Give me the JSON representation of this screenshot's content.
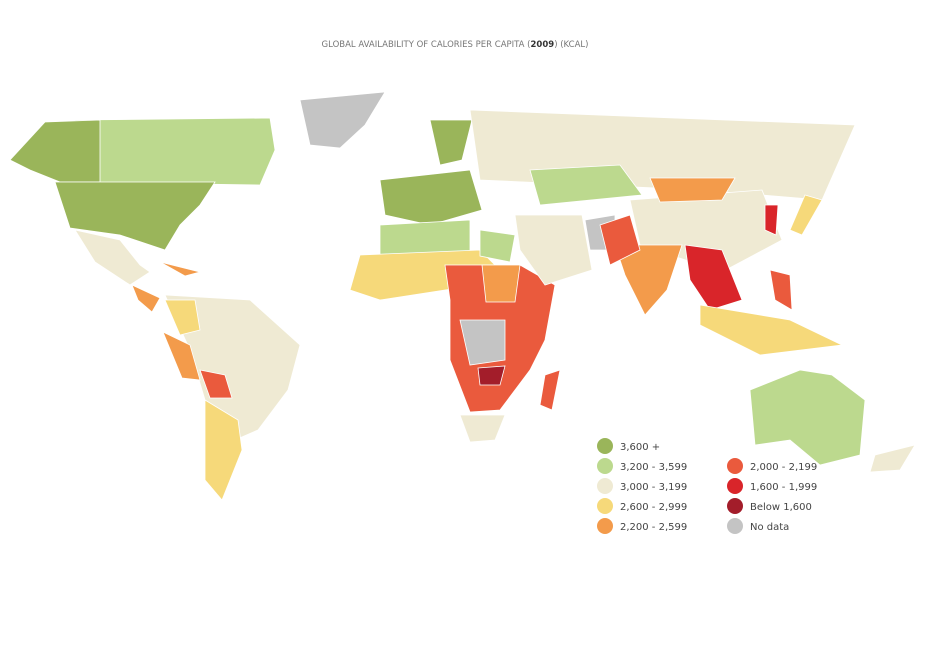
{
  "header": {
    "title_prefix": "GLOBAL AVAILABILITY OF CALORIES PER CAPITA (",
    "title_year": "2009",
    "title_suffix": ") (KCAL)"
  },
  "legend": [
    {
      "label": "3,600 +",
      "color": "#9ab55a"
    },
    {
      "label": "3,200 - 3,599",
      "color": "#bcd98e"
    },
    {
      "label": "3,000 - 3,199",
      "color": "#efead3"
    },
    {
      "label": "2,600 - 2,999",
      "color": "#f6d97a"
    },
    {
      "label": "2,200 - 2,599",
      "color": "#f39b4b"
    },
    {
      "label": "2,000 - 2,199",
      "color": "#ea5a3d"
    },
    {
      "label": "1,600 - 1,999",
      "color": "#d9252a"
    },
    {
      "label": "Below 1,600",
      "color": "#a31d2a"
    },
    {
      "label": "No data",
      "color": "#c4c4c4"
    }
  ]
}
